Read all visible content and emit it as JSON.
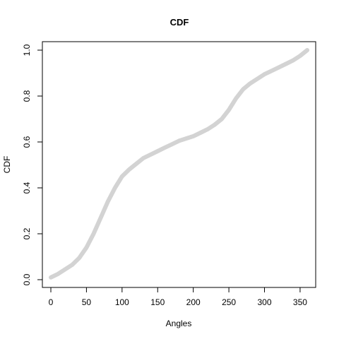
{
  "chart_data": {
    "type": "line",
    "title": "CDF",
    "xlabel": "Angles",
    "ylabel": "CDF",
    "xlim": [
      0,
      360
    ],
    "ylim": [
      0,
      1
    ],
    "x_ticks": [
      0,
      50,
      100,
      150,
      200,
      250,
      300,
      350
    ],
    "y_ticks": [
      "0.0",
      "0.2",
      "0.4",
      "0.6",
      "0.8",
      "1.0"
    ],
    "grid": false,
    "legend": "none",
    "series": [
      {
        "color": "#d3d3d3",
        "x": [
          0,
          10,
          20,
          30,
          40,
          50,
          60,
          70,
          80,
          90,
          100,
          110,
          120,
          130,
          140,
          150,
          160,
          170,
          180,
          190,
          200,
          210,
          220,
          230,
          240,
          250,
          260,
          270,
          280,
          290,
          300,
          310,
          320,
          330,
          340,
          350,
          360
        ],
        "values": [
          0.01,
          0.025,
          0.045,
          0.065,
          0.095,
          0.14,
          0.2,
          0.27,
          0.34,
          0.4,
          0.45,
          0.48,
          0.505,
          0.53,
          0.545,
          0.56,
          0.575,
          0.59,
          0.605,
          0.615,
          0.625,
          0.64,
          0.655,
          0.675,
          0.7,
          0.74,
          0.79,
          0.83,
          0.855,
          0.875,
          0.895,
          0.91,
          0.925,
          0.94,
          0.955,
          0.975,
          1.0
        ]
      }
    ]
  }
}
